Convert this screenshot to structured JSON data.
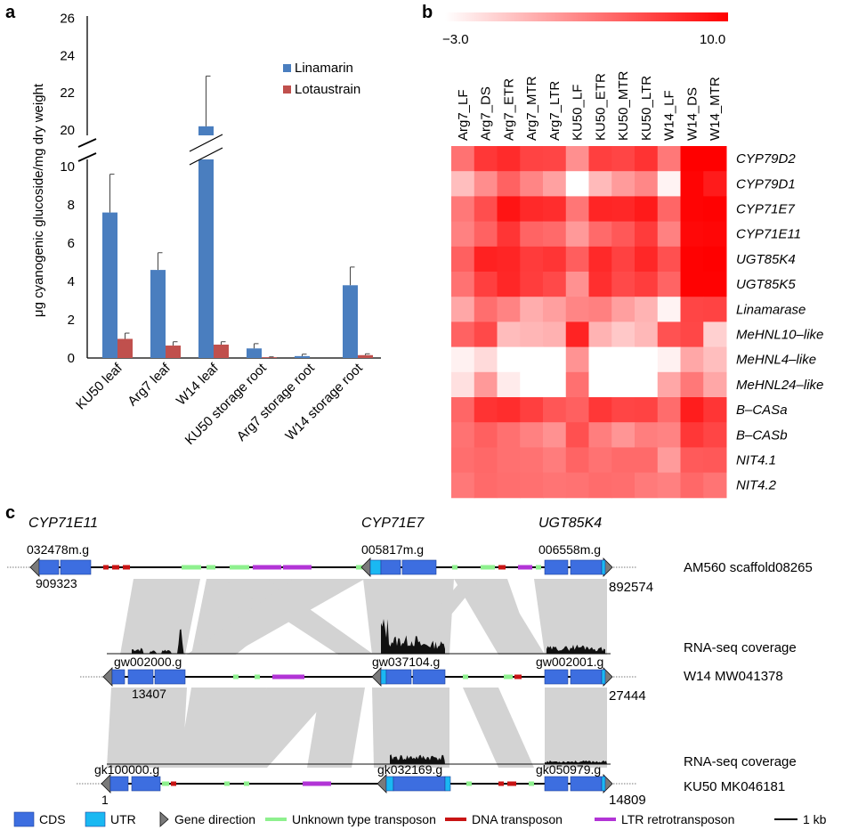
{
  "panels": {
    "a": {
      "letter": "a",
      "chart_data": {
        "type": "bar",
        "ylabel": "μg cyanogenic glucoside/mg dry weight",
        "yticks_lower": [
          "0",
          "2",
          "4",
          "6",
          "8",
          "10"
        ],
        "yticks_upper": [
          "20",
          "22",
          "24",
          "26"
        ],
        "axis_break": [
          10,
          20
        ],
        "ylim": [
          0,
          26
        ],
        "categories": [
          "KU50 leaf",
          "Arg7 leaf",
          "W14 leaf",
          "KU50 storage root",
          "Arg7 storage root",
          "W14 storage root"
        ],
        "series": [
          {
            "name": "Linamarin",
            "color": "#4a7ebf",
            "values": [
              7.6,
              4.6,
              20.2,
              0.5,
              0.1,
              3.8
            ],
            "errors": [
              2.0,
              0.9,
              2.7,
              0.25,
              0.1,
              0.95
            ]
          },
          {
            "name": "Lotaustrain",
            "color": "#c0504d",
            "values": [
              1.0,
              0.65,
              0.7,
              0.04,
              0.0,
              0.15
            ],
            "errors": [
              0.3,
              0.2,
              0.15,
              0.02,
              0.0,
              0.07
            ]
          }
        ],
        "legend": "top-right"
      }
    },
    "b": {
      "letter": "b",
      "chart_data": {
        "type": "heatmap",
        "color_scale": {
          "min": -3.0,
          "max": 10.0,
          "min_label": "−3.0",
          "max_label": "10.0",
          "low_color": "#ffffff",
          "high_color": "#ff0000"
        },
        "columns": [
          "Arg7_LF",
          "Arg7_DS",
          "Arg7_ETR",
          "Arg7_MTR",
          "Arg7_LTR",
          "KU50_LF",
          "KU50_ETR",
          "KU50_MTR",
          "KU50_LTR",
          "W14_LF",
          "W14_DS",
          "W14_MTR"
        ],
        "rows": [
          "CYP79D2",
          "CYP79D1",
          "CYP71E7",
          "CYP71E11",
          "UGT85K4",
          "UGT85K5",
          "Linamarase",
          "MeHNL10–like",
          "MeHNL4–like",
          "MeHNL24–like",
          "B–CASa",
          "B–CASb",
          "NIT4.1",
          "NIT4.2"
        ],
        "values": [
          [
            4.2,
            7.2,
            7.8,
            6.6,
            6.5,
            2.7,
            6.8,
            6.5,
            7.4,
            3.9,
            10.0,
            10.0
          ],
          [
            0.3,
            2.8,
            5.0,
            3.2,
            1.8,
            -3.0,
            0.5,
            2.1,
            3.1,
            -2.4,
            9.8,
            8.6
          ],
          [
            3.9,
            6.0,
            9.0,
            7.9,
            7.7,
            4.0,
            8.1,
            8.0,
            8.7,
            4.8,
            9.8,
            9.9
          ],
          [
            3.4,
            5.0,
            7.3,
            4.9,
            4.6,
            2.2,
            4.6,
            5.5,
            7.0,
            3.4,
            9.6,
            9.7
          ],
          [
            5.1,
            8.3,
            8.1,
            7.0,
            7.3,
            5.2,
            7.9,
            6.7,
            8.0,
            5.9,
            9.9,
            10.0
          ],
          [
            4.2,
            6.8,
            8.0,
            6.9,
            6.3,
            2.6,
            7.6,
            6.3,
            6.9,
            4.9,
            9.9,
            9.9
          ],
          [
            1.5,
            4.4,
            3.3,
            1.2,
            1.9,
            3.2,
            3.5,
            1.9,
            0.9,
            -2.4,
            6.5,
            6.6
          ],
          [
            5.0,
            6.3,
            0.4,
            0.7,
            1.0,
            8.2,
            0.9,
            -0.2,
            0.6,
            5.8,
            6.4,
            -0.6
          ],
          [
            -2.3,
            -1.1,
            -3.0,
            -3.0,
            -3.0,
            2.5,
            -3.0,
            -3.0,
            -3.0,
            -2.3,
            1.5,
            0.3
          ],
          [
            -1.4,
            2.2,
            -2.0,
            -3.0,
            -3.0,
            4.3,
            -3.0,
            -3.0,
            -3.0,
            1.5,
            3.9,
            1.5
          ],
          [
            4.8,
            7.4,
            7.7,
            6.8,
            5.6,
            5.1,
            7.2,
            6.5,
            6.6,
            4.5,
            8.5,
            7.3
          ],
          [
            4.2,
            5.1,
            4.3,
            3.4,
            2.6,
            5.9,
            3.6,
            2.4,
            3.6,
            3.3,
            7.2,
            6.5
          ],
          [
            4.4,
            4.7,
            4.3,
            4.2,
            3.7,
            4.9,
            4.2,
            4.6,
            4.6,
            2.1,
            5.4,
            5.5
          ],
          [
            3.9,
            4.6,
            4.4,
            4.3,
            4.1,
            4.2,
            4.5,
            4.4,
            3.8,
            3.5,
            4.7,
            4.1
          ]
        ]
      }
    },
    "c": {
      "letter": "c",
      "gene_labels": [
        "CYP71E11",
        "CYP71E7",
        "UGT85K4"
      ],
      "tracks": [
        {
          "name": "AM560 scaffold08265",
          "ids": [
            "032478m.g",
            "005817m.g",
            "006558m.g"
          ],
          "start": "909323",
          "end": "892574"
        },
        {
          "coverage_label": "RNA-seq coverage",
          "name": "W14 MW041378",
          "ids": [
            "gw002000.g",
            "gw037104.g",
            "gw002001.g"
          ],
          "start": "13407",
          "end": "27444"
        },
        {
          "coverage_label": "RNA-seq coverage",
          "name": "KU50 MK046181",
          "ids": [
            "gk100000.g",
            "gk032169.g",
            "gk050979.g"
          ],
          "start": "1",
          "end": "14809"
        }
      ],
      "legend": [
        {
          "label": "CDS",
          "kind": "box",
          "color": "#3d6ee0"
        },
        {
          "label": "UTR",
          "kind": "box",
          "color": "#1ab8f2"
        },
        {
          "label": "Gene direction",
          "kind": "arrow",
          "color": "#7a7a7a"
        },
        {
          "label": "Unknown type transposon",
          "kind": "line",
          "color": "#8ef08e"
        },
        {
          "label": "DNA transposon",
          "kind": "line",
          "color": "#c81414"
        },
        {
          "label": "LTR retrotransposon",
          "kind": "line",
          "color": "#b234d6"
        },
        {
          "label": "1 kb",
          "kind": "scale",
          "color": "#000000"
        }
      ]
    }
  }
}
